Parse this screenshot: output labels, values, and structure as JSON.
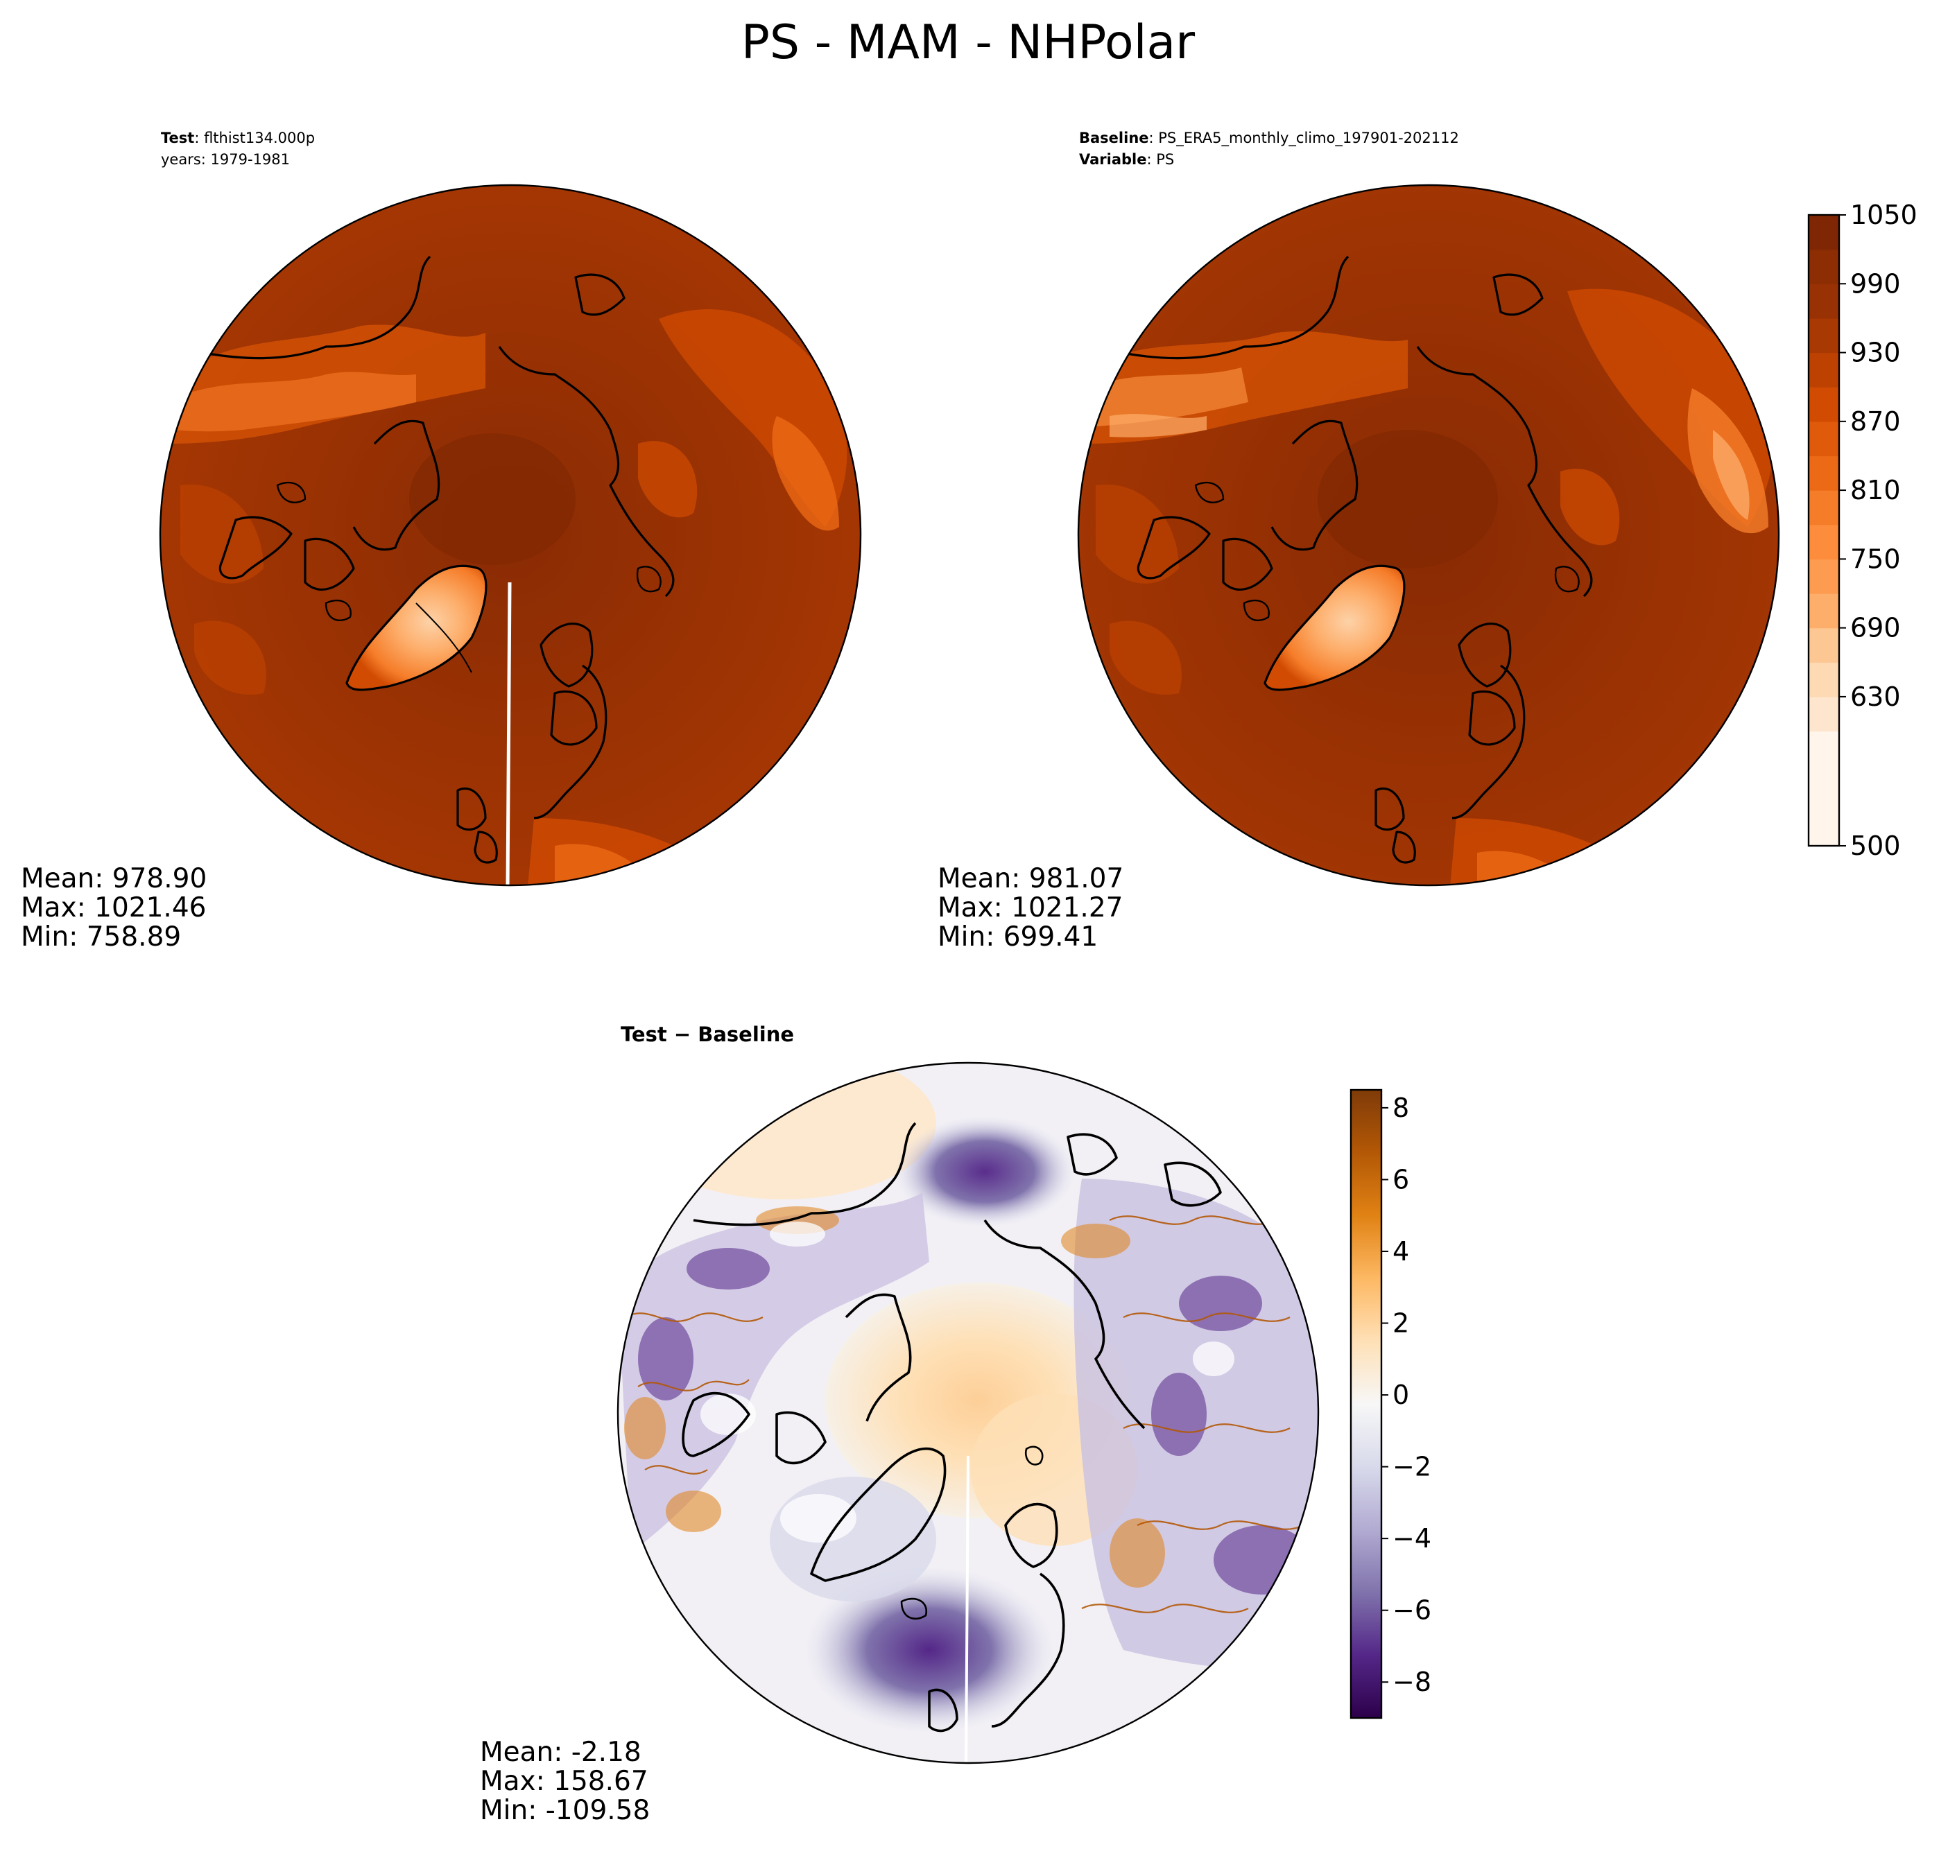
{
  "figure": {
    "title": "PS - MAM - NHPolar"
  },
  "test_panel": {
    "label_bold": "Test",
    "label_rest": ": flthist134.000p",
    "years": "years: 1979-1981",
    "stats": {
      "mean": "Mean: 978.90",
      "max": "Max: 1021.46",
      "min": "Min: 758.89"
    }
  },
  "baseline_panel": {
    "label_bold": "Baseline",
    "label_rest": ": PS_ERA5_monthly_climo_197901-202112",
    "variable_bold": "Variable",
    "variable_rest": ": PS",
    "stats": {
      "mean": "Mean: 981.07",
      "max": "Max: 1021.27",
      "min": "Min: 699.41"
    }
  },
  "diff_panel": {
    "label": "Test − Baseline",
    "stats": {
      "mean": "Mean: -2.18",
      "max": "Max: 158.67",
      "min": "Min: -109.58"
    }
  },
  "colorbar_main": {
    "cmap": "Oranges",
    "range": [
      500,
      1050
    ],
    "ticks": [
      "500",
      "630",
      "690",
      "750",
      "810",
      "870",
      "930",
      "990",
      "1050"
    ],
    "levels": [
      500,
      600,
      630,
      660,
      690,
      720,
      750,
      780,
      810,
      840,
      870,
      900,
      930,
      960,
      990,
      1020,
      1050
    ],
    "colors": [
      "#fff5eb",
      "#fee6ce",
      "#fdd9b4",
      "#fdc793",
      "#fdae6b",
      "#fd9b50",
      "#fd8d3c",
      "#f57d2a",
      "#ec6915",
      "#df5a0a",
      "#d14b02",
      "#bd4202",
      "#a83903",
      "#983103",
      "#8c2d04",
      "#7f2704"
    ]
  },
  "colorbar_diff": {
    "cmap": "PuOr_r",
    "range": [
      -9,
      8.5
    ],
    "ticks": [
      "−8",
      "−6",
      "−4",
      "−2",
      "0",
      "2",
      "4",
      "6",
      "8"
    ],
    "tick_values": [
      -8,
      -6,
      -4,
      -2,
      0,
      2,
      4,
      6,
      8
    ],
    "colors_bottom_to_top": [
      "#2d004b",
      "#542788",
      "#8073ac",
      "#b2abd2",
      "#d8daeb",
      "#f7f7f7",
      "#fee0b6",
      "#fdb863",
      "#e08214",
      "#b35806",
      "#7f3b08"
    ]
  }
}
